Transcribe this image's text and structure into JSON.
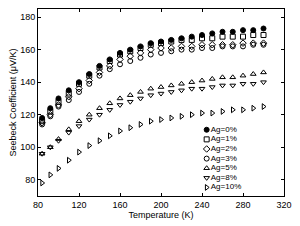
{
  "chart_data": {
    "type": "scatter",
    "x_label": "Temperature (K)",
    "y_label": "Seebeck Coefficient (μV/K)",
    "x": [
      84,
      92,
      100,
      110,
      120,
      130,
      140,
      150,
      160,
      170,
      180,
      190,
      200,
      210,
      220,
      230,
      240,
      250,
      260,
      270,
      280,
      290,
      300
    ],
    "series": [
      {
        "name": "Ag=0%",
        "color": "#000000",
        "marker": "circle",
        "values": [
          118,
          124,
          130,
          135,
          140,
          145,
          150,
          154,
          158,
          160,
          162,
          164,
          165,
          166,
          167,
          168,
          169,
          170,
          171,
          171,
          172,
          172,
          173
        ]
      },
      {
        "name": "Ag=1%",
        "color": "#000000",
        "marker": "square-open",
        "values": [
          116,
          122,
          128,
          133,
          139,
          144,
          149,
          153,
          157,
          159,
          161,
          163,
          164,
          165,
          166,
          166,
          167,
          167,
          168,
          168,
          168,
          169,
          169
        ]
      },
      {
        "name": "Ag=2%",
        "color": "#000000",
        "marker": "diamond-open",
        "values": [
          115,
          120,
          126,
          131,
          136,
          141,
          146,
          150,
          154,
          156,
          158,
          160,
          161,
          161,
          162,
          162,
          163,
          163,
          163,
          163,
          164,
          164,
          164
        ]
      },
      {
        "name": "Ag=3%",
        "color": "#000000",
        "marker": "circle-open",
        "values": [
          114,
          119,
          125,
          129,
          134,
          139,
          144,
          148,
          151,
          153,
          155,
          157,
          158,
          159,
          160,
          160,
          161,
          161,
          162,
          162,
          162,
          163,
          163
        ]
      },
      {
        "name": "Ag=5%",
        "color": "#000000",
        "marker": "triangle-up-open",
        "values": [
          96,
          100,
          105,
          111,
          116,
          120,
          124,
          127,
          130,
          132,
          134,
          136,
          137,
          138,
          139,
          140,
          141,
          142,
          143,
          143,
          144,
          145,
          146
        ]
      },
      {
        "name": "Ag=8%",
        "color": "#000000",
        "marker": "triangle-down-open",
        "values": [
          96,
          100,
          104,
          109,
          113,
          117,
          120,
          123,
          126,
          128,
          130,
          132,
          133,
          134,
          135,
          136,
          136,
          137,
          138,
          138,
          139,
          139,
          140
        ]
      },
      {
        "name": "Ag=10%",
        "color": "#000000",
        "marker": "triangle-right-open",
        "values": [
          78,
          83,
          87,
          92,
          97,
          101,
          104,
          107,
          110,
          112,
          114,
          116,
          117,
          118,
          119,
          120,
          121,
          121,
          122,
          123,
          123,
          124,
          125
        ]
      }
    ],
    "xlim": [
      80,
      320
    ],
    "xticks": [
      80,
      120,
      160,
      200,
      240,
      280,
      320
    ],
    "ylim": [
      70,
      185
    ],
    "yticks": [
      80,
      100,
      120,
      140,
      160,
      180
    ],
    "grid": false,
    "legend": "bottom right"
  }
}
